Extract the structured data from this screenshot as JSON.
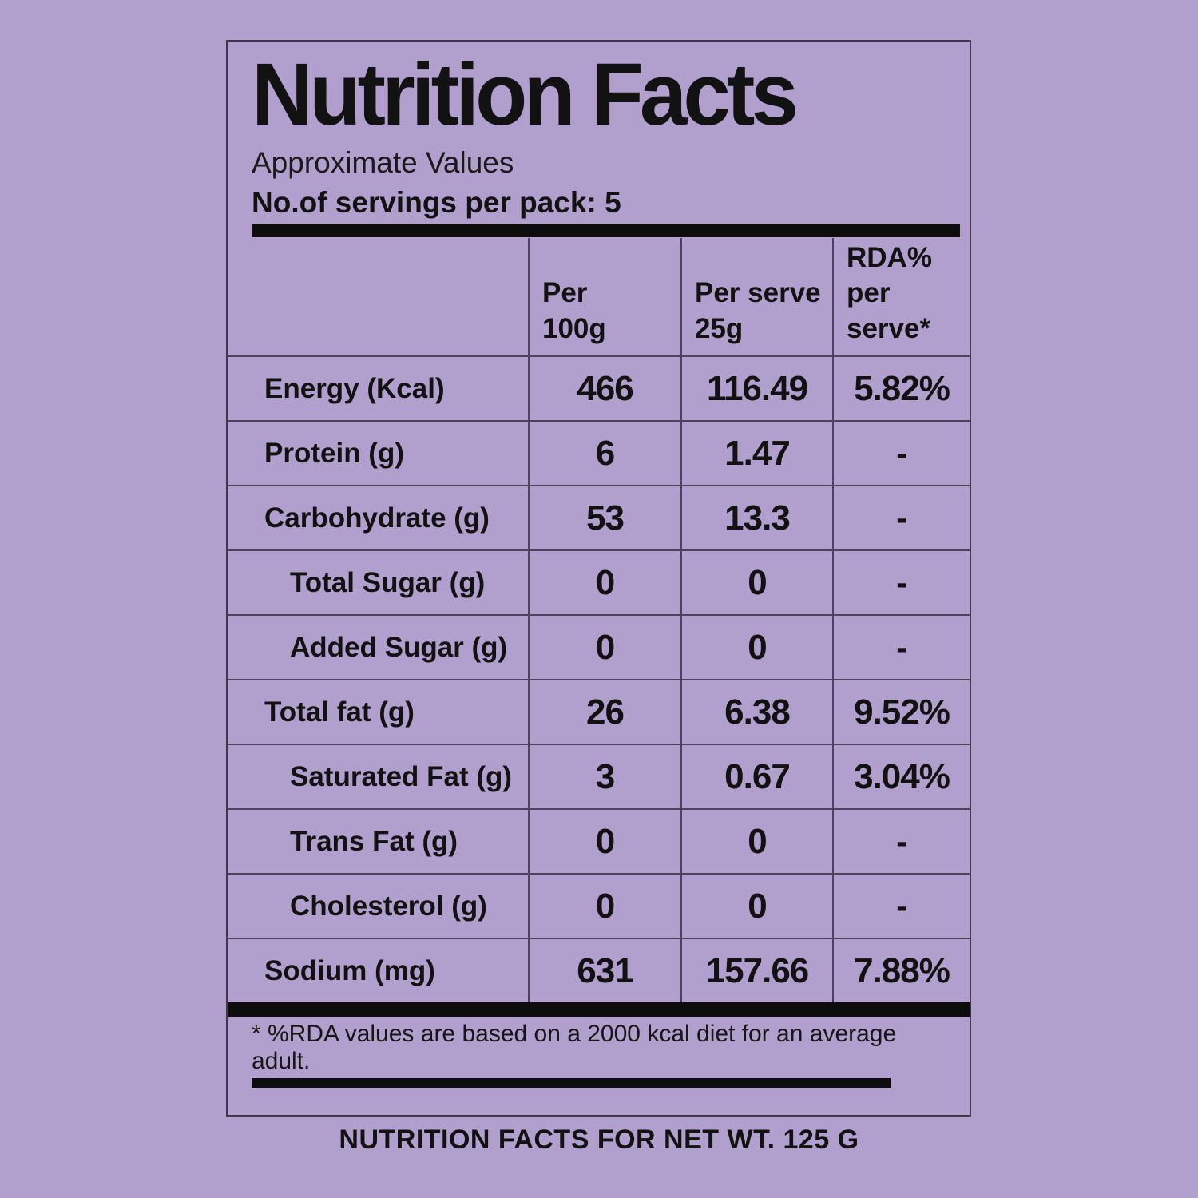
{
  "header": {
    "title": "Nutrition Facts",
    "subtitle": "Approximate Values",
    "servings": "No.of servings per pack: 5"
  },
  "table": {
    "columns": [
      {
        "line1": "Per",
        "line2": "100g"
      },
      {
        "line1": "Per serve",
        "line2": "25g"
      },
      {
        "line1": "RDA% per",
        "line2": "serve*"
      }
    ],
    "rows": [
      {
        "name": "Energy (Kcal)",
        "per_100g": "466",
        "per_serve": "116.49",
        "rda_percent": "5.82%"
      },
      {
        "name": "Protein (g)",
        "per_100g": "6",
        "per_serve": "1.47",
        "rda_percent": "-"
      },
      {
        "name": "Carbohydrate (g)",
        "per_100g": "53",
        "per_serve": "13.3",
        "rda_percent": "-"
      },
      {
        "name": "Total Sugar (g)",
        "per_100g": "0",
        "per_serve": "0",
        "rda_percent": "-"
      },
      {
        "name": "Added Sugar (g)",
        "per_100g": "0",
        "per_serve": "0",
        "rda_percent": "-"
      },
      {
        "name": "Total fat (g)",
        "per_100g": "26",
        "per_serve": "6.38",
        "rda_percent": "9.52%"
      },
      {
        "name": "Saturated Fat (g)",
        "per_100g": "3",
        "per_serve": "0.67",
        "rda_percent": "3.04%"
      },
      {
        "name": "Trans Fat (g)",
        "per_100g": "0",
        "per_serve": "0",
        "rda_percent": "-"
      },
      {
        "name": "Cholesterol (g)",
        "per_100g": "0",
        "per_serve": "0",
        "rda_percent": "-"
      },
      {
        "name": "Sodium (mg)",
        "per_100g": "631",
        "per_serve": "157.66",
        "rda_percent": "7.88%"
      }
    ]
  },
  "footnote": {
    "text": "* %RDA values are based on a 2000 kcal diet for an average adult."
  },
  "caption": {
    "text": "NUTRITION FACTS FOR NET WT. 125 G"
  },
  "colors": {
    "background": "#b1a0cd",
    "grid_line": "#4e4159",
    "box_border": "#41374b",
    "text": "#121212",
    "bar": "#0d0d0d"
  }
}
